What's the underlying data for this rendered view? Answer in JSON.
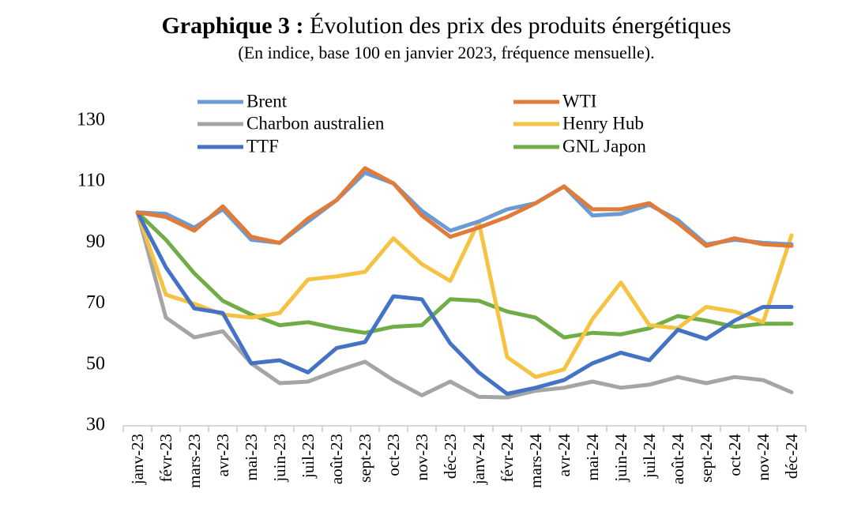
{
  "chart_data": {
    "type": "line",
    "title_prefix": "Graphique 3 :",
    "title_main": "Évolution des prix des produits énergétiques",
    "subtitle": "(En indice, base 100 en janvier 2023, fréquence mensuelle).",
    "xlabel": "",
    "ylabel": "",
    "ylim": [
      30,
      130
    ],
    "yticks": [
      30,
      50,
      70,
      90,
      110,
      130
    ],
    "grid": false,
    "legend_position": "top",
    "categories": [
      "janv-23",
      "févr-23",
      "mars-23",
      "avr-23",
      "mai-23",
      "juin-23",
      "juil-23",
      "août-23",
      "sept-23",
      "oct-23",
      "nov-23",
      "déc-23",
      "janv-24",
      "févr-24",
      "mars-24",
      "avr-24",
      "mai-24",
      "juin-24",
      "juil-24",
      "août-24",
      "sept-24",
      "oct-24",
      "nov-24",
      "déc-24"
    ],
    "series": [
      {
        "name": "Brent",
        "color": "#6b9bd2",
        "values": [
          100,
          99.5,
          95,
          101,
          91,
          90,
          97,
          104,
          113,
          109.5,
          100.5,
          94,
          97,
          101,
          103,
          108.5,
          99,
          99.5,
          102.5,
          97.5,
          89.5,
          91,
          90,
          89.5
        ]
      },
      {
        "name": "WTI",
        "color": "#e07b39",
        "values": [
          100,
          98.5,
          94,
          102,
          92,
          90,
          98,
          104,
          114.5,
          109.5,
          99,
          92,
          95,
          98.5,
          103,
          108.5,
          101,
          101,
          103,
          96.5,
          89,
          91.5,
          89.5,
          89
        ]
      },
      {
        "name": "Charbon australien",
        "color": "#a5a5a5",
        "values": [
          100,
          65.5,
          59,
          61,
          50.5,
          44,
          44.5,
          48,
          51,
          45,
          40,
          44.5,
          39.5,
          39.3,
          41.5,
          42.5,
          44.5,
          42.5,
          43.5,
          46,
          44,
          46,
          45,
          41
        ]
      },
      {
        "name": "Henry Hub",
        "color": "#f5c242",
        "values": [
          100,
          73,
          70,
          66.5,
          65.5,
          67,
          78,
          79,
          80.5,
          91.5,
          83,
          77.5,
          97,
          52.5,
          46,
          48.5,
          65,
          77,
          63,
          62,
          69,
          67.5,
          64,
          92.5
        ]
      },
      {
        "name": "TTF",
        "color": "#4472c4",
        "values": [
          100,
          82,
          68.5,
          67,
          50.5,
          51.5,
          47.5,
          55.5,
          57.5,
          72.5,
          71.5,
          57,
          47.5,
          40.5,
          42.5,
          45,
          50.5,
          54,
          51.5,
          61.5,
          58.5,
          64.5,
          69,
          69
        ]
      },
      {
        "name": "GNL Japon",
        "color": "#70ad47",
        "values": [
          100,
          91,
          80,
          71,
          66.5,
          63,
          64,
          62,
          60.5,
          62.5,
          63,
          71.5,
          71,
          67.5,
          65.5,
          59,
          60.5,
          60,
          62,
          66,
          64.5,
          62.5,
          63.5,
          63.5
        ]
      }
    ]
  }
}
